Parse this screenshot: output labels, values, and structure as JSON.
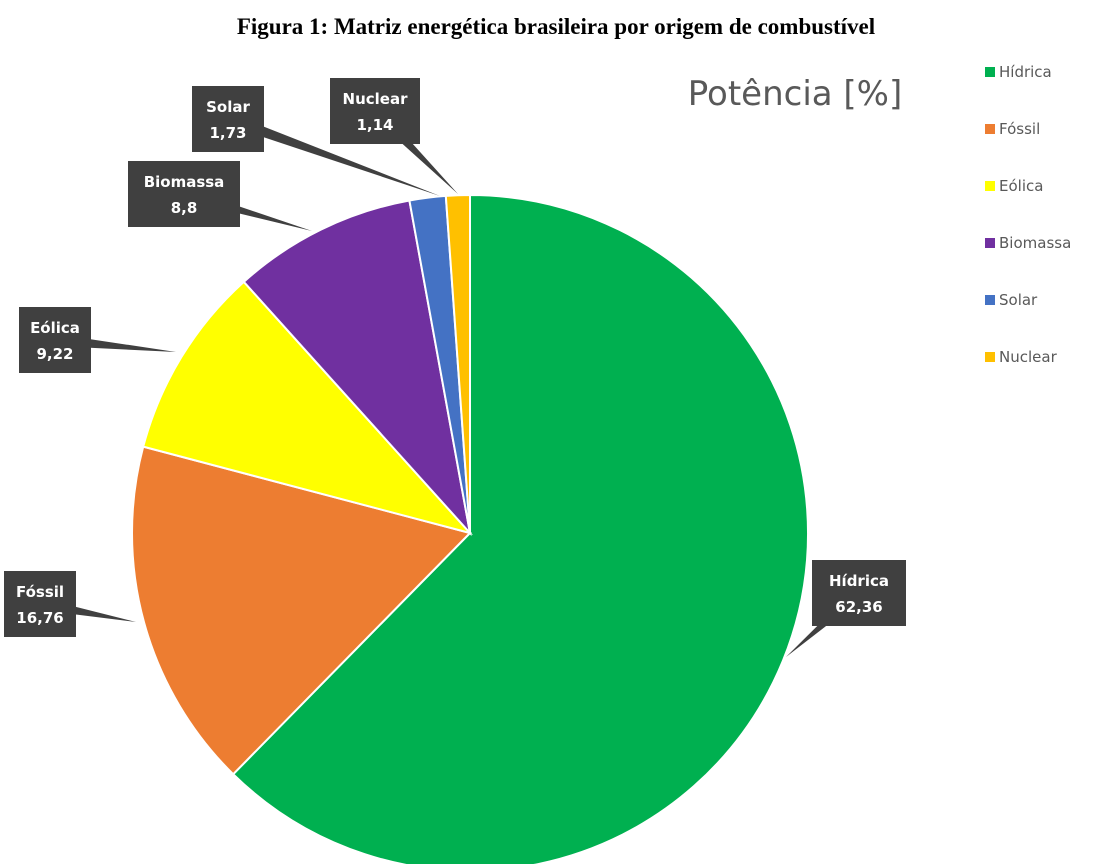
{
  "caption": "Figura 1: Matriz energética brasileira por origem de combustível",
  "chart_data": {
    "type": "pie",
    "title": "Potência [%]",
    "legend_position": "right",
    "slices": [
      {
        "label": "Hídrica",
        "value": 62.36,
        "value_text": "62,36",
        "color": "#00B050"
      },
      {
        "label": "Fóssil",
        "value": 16.76,
        "value_text": "16,76",
        "color": "#ED7D31"
      },
      {
        "label": "Eólica",
        "value": 9.22,
        "value_text": "9,22",
        "color": "#FFFF00"
      },
      {
        "label": "Biomassa",
        "value": 8.8,
        "value_text": "8,8",
        "color": "#7030A0"
      },
      {
        "label": "Solar",
        "value": 1.73,
        "value_text": "1,73",
        "color": "#4472C4"
      },
      {
        "label": "Nuclear",
        "value": 1.14,
        "value_text": "1,14",
        "color": "#FFC000"
      }
    ]
  }
}
